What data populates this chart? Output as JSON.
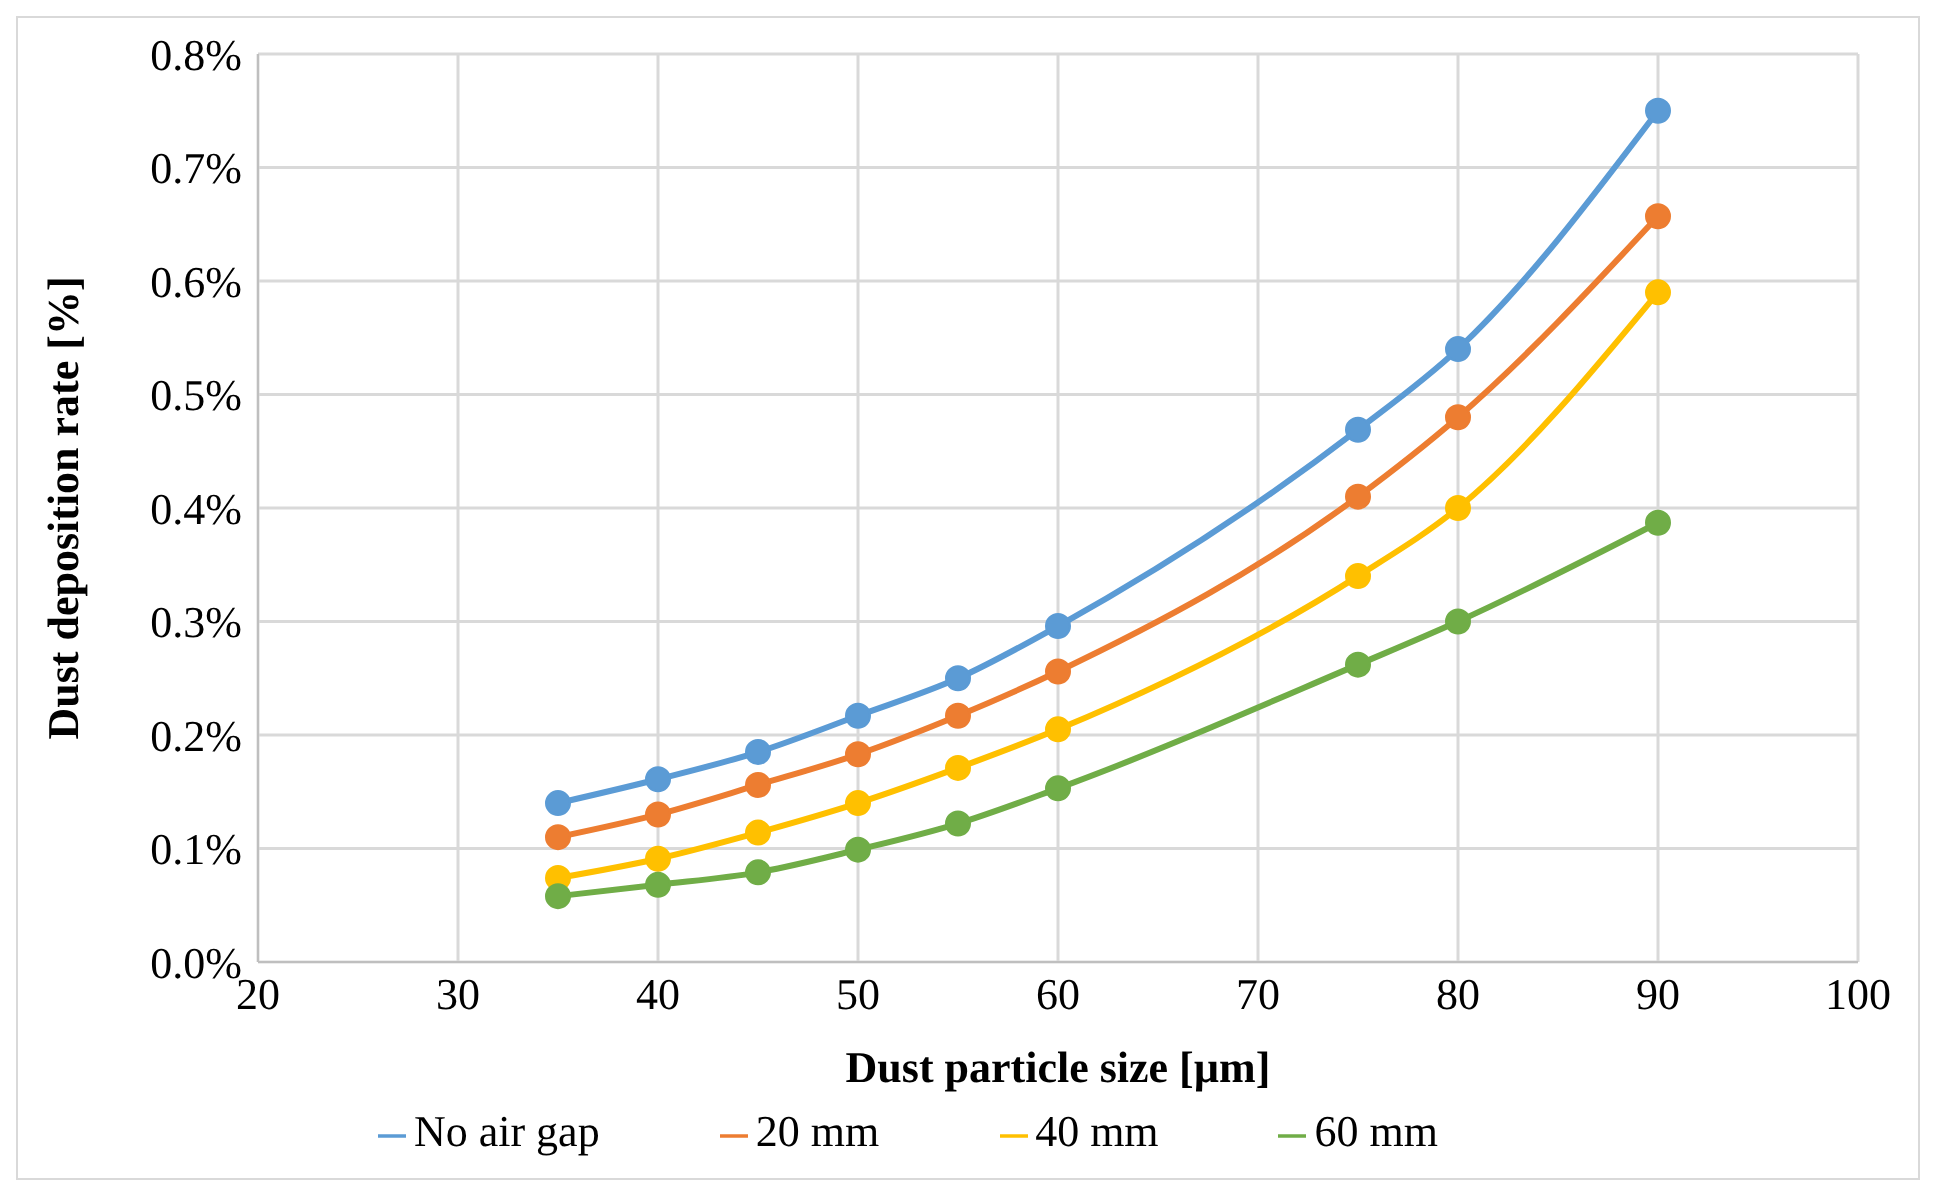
{
  "chart_data": {
    "type": "line",
    "xlabel": "Dust particle size [µm]",
    "ylabel": "Dust deposition rate [%]",
    "x": [
      35,
      40,
      45,
      50,
      55,
      60,
      75,
      80,
      90
    ],
    "series": [
      {
        "name": "No air gap",
        "color": "#5b9bd5",
        "values": [
          0.14,
          0.161,
          0.185,
          0.217,
          0.25,
          0.296,
          0.469,
          0.54,
          0.75
        ]
      },
      {
        "name": "20 mm",
        "color": "#ed7d31",
        "values": [
          0.11,
          0.13,
          0.156,
          0.183,
          0.217,
          0.256,
          0.41,
          0.48,
          0.657
        ]
      },
      {
        "name": "40 mm",
        "color": "#ffc000",
        "values": [
          0.074,
          0.091,
          0.114,
          0.14,
          0.171,
          0.205,
          0.34,
          0.4,
          0.59
        ]
      },
      {
        "name": "60 mm",
        "color": "#70ad47",
        "values": [
          0.058,
          0.068,
          0.079,
          0.099,
          0.122,
          0.153,
          0.262,
          0.3,
          0.387
        ]
      }
    ],
    "xlim": [
      20,
      100
    ],
    "xticks": [
      20,
      30,
      40,
      50,
      60,
      70,
      80,
      90,
      100
    ],
    "ylim": [
      0,
      0.8
    ],
    "yticks": [
      {
        "value": 0,
        "label": "0.0%"
      },
      {
        "value": 0.1,
        "label": "0.1%"
      },
      {
        "value": 0.2,
        "label": "0.2%"
      },
      {
        "value": 0.3,
        "label": "0.3%"
      },
      {
        "value": 0.4,
        "label": "0.4%"
      },
      {
        "value": 0.5,
        "label": "0.5%"
      },
      {
        "value": 0.6,
        "label": "0.6%"
      },
      {
        "value": 0.7,
        "label": "0.7%"
      },
      {
        "value": 0.8,
        "label": "0.8%"
      }
    ],
    "grid": true,
    "legend": "bottom",
    "marker": "circle",
    "line_style": "solid"
  }
}
